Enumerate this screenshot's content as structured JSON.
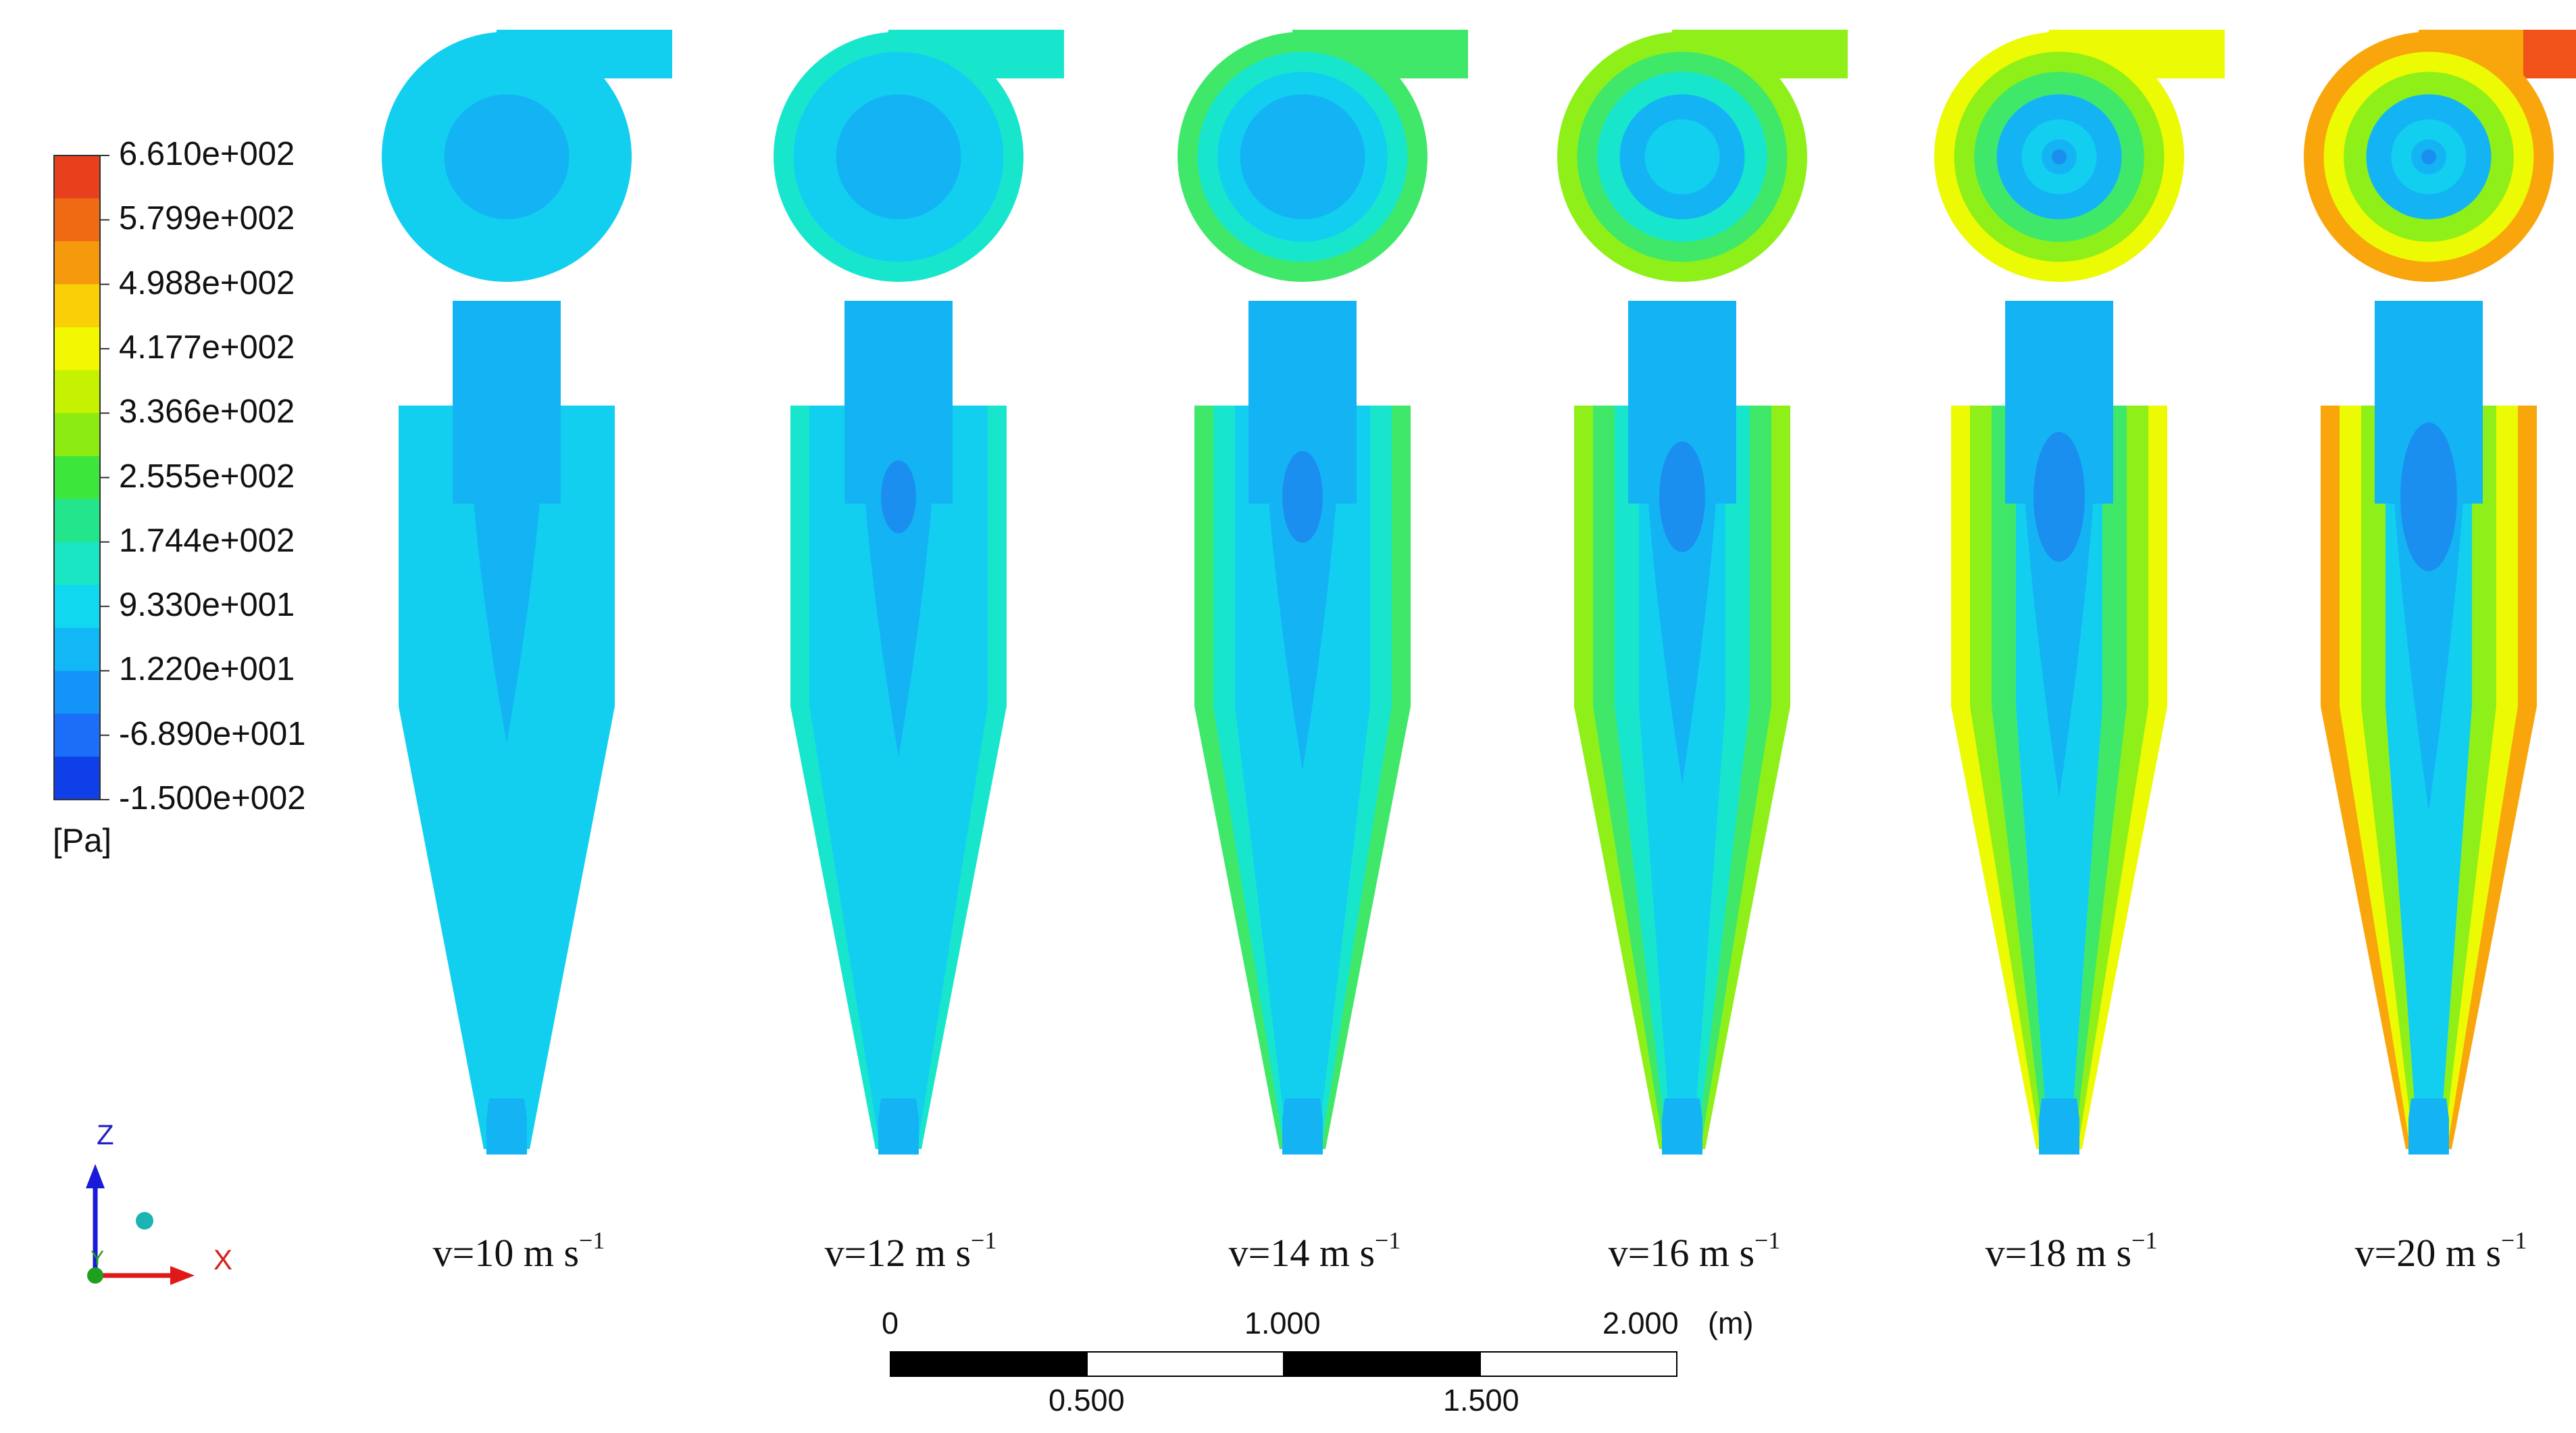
{
  "legend": {
    "labels": [
      "6.610e+002",
      "5.799e+002",
      "4.988e+002",
      "4.177e+002",
      "3.366e+002",
      "2.555e+002",
      "1.744e+002",
      "9.330e+001",
      "1.220e+001",
      "-6.890e+001",
      "-1.500e+002"
    ],
    "unit": "[Pa]",
    "band_colors": [
      "#e8401c",
      "#f06a14",
      "#f59a0c",
      "#fbcf06",
      "#f2f800",
      "#c4f200",
      "#8ceb10",
      "#3de63a",
      "#22e58c",
      "#1ae6c4",
      "#10d8ef",
      "#12b8f6",
      "#1394f8",
      "#1a6ef7",
      "#0f3fe6"
    ]
  },
  "pressure_colors": {
    "very_low": "#1b8ff0",
    "low": "#14b4f4",
    "mid": "#12cff0",
    "midhigh": "#18e6cc",
    "high": "#40e86a",
    "higher": "#8ef018",
    "yellow": "#ecfa04",
    "orange": "#f8a60c",
    "red": "#f0521a"
  },
  "cases": [
    {
      "label": "v=10 m s",
      "sup": "−1",
      "level": 0
    },
    {
      "label": "v=12 m s",
      "sup": "−1",
      "level": 1
    },
    {
      "label": "v=14 m s",
      "sup": "−1",
      "level": 2
    },
    {
      "label": "v=16 m s",
      "sup": "−1",
      "level": 3
    },
    {
      "label": "v=18 m s",
      "sup": "−1",
      "level": 4
    },
    {
      "label": "v=20 m s",
      "sup": "−1",
      "level": 5
    }
  ],
  "scale_bar": {
    "top_labels": [
      "0",
      "1.000",
      "2.000",
      "(m)"
    ],
    "bottom_labels": [
      "0.500",
      "1.500"
    ]
  },
  "axes": {
    "z_label": "Z",
    "x_label": "X",
    "y_label": "Y"
  }
}
